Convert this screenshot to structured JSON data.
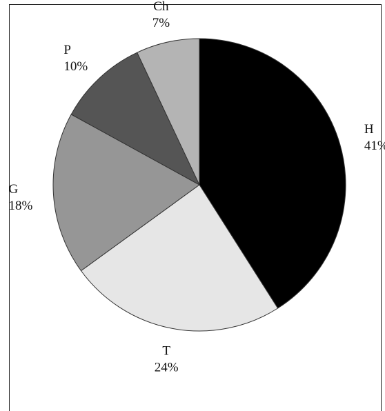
{
  "chart_data": {
    "type": "pie",
    "start_angle": "top",
    "direction": "clockwise",
    "slices": [
      {
        "label": "H",
        "percent_text": "41%",
        "value": 41,
        "color": "#000000"
      },
      {
        "label": "T",
        "percent_text": "24%",
        "value": 24,
        "color": "#e6e6e6"
      },
      {
        "label": "G",
        "percent_text": "18%",
        "value": 18,
        "color": "#969696"
      },
      {
        "label": "P",
        "percent_text": "10%",
        "value": 10,
        "color": "#555555"
      },
      {
        "label": "Ch",
        "percent_text": "7%",
        "value": 7,
        "color": "#b4b4b4"
      }
    ],
    "slice_border_color": "#333333",
    "legend": "none"
  }
}
